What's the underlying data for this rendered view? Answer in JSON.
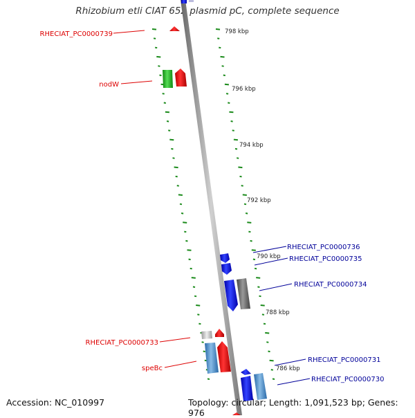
{
  "title": "Rhizobium etli CIAT 652 plasmid pC, complete sequence",
  "footer": {
    "accession": "Accession: NC_010997",
    "summary": "Topology: circular; Length: 1,091,523 bp; Genes: 976"
  },
  "colors": {
    "forward_label": "#dd0000",
    "reverse_label": "#000099",
    "tick_marks": "#1a8a1a",
    "backbone": "#8c8c8c"
  },
  "ticks": [
    "798 kbp",
    "796 kbp",
    "794 kbp",
    "792 kbp",
    "790 kbp",
    "788 kbp",
    "786 kbp"
  ],
  "genes": [
    {
      "label": "RHECIAT_PC0000739",
      "strand": "forward"
    },
    {
      "label": "nodW",
      "strand": "forward"
    },
    {
      "label": "RHECIAT_PC0000733",
      "strand": "forward"
    },
    {
      "label": "speBc",
      "strand": "forward"
    },
    {
      "label": "RHECIAT_PC0000736",
      "strand": "reverse"
    },
    {
      "label": "RHECIAT_PC0000735",
      "strand": "reverse"
    },
    {
      "label": "RHECIAT_PC0000734",
      "strand": "reverse"
    },
    {
      "label": "RHECIAT_PC0000731",
      "strand": "reverse"
    },
    {
      "label": "RHECIAT_PC0000730",
      "strand": "reverse"
    }
  ]
}
